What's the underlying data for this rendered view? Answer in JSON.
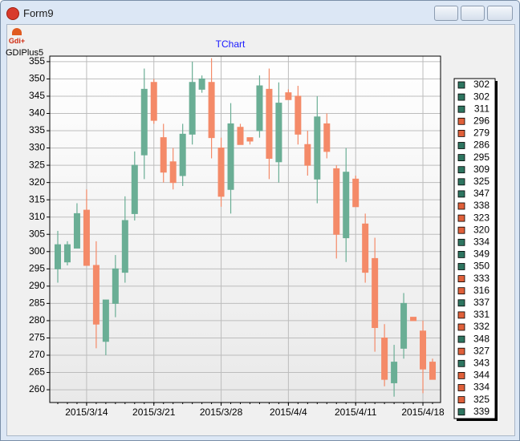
{
  "window": {
    "title": "Form9"
  },
  "toolbar": {
    "icon_label": "Gdi+"
  },
  "panel_label": "GDIPlus5",
  "chart_data": {
    "type": "candlestick",
    "title": "TChart",
    "x": [
      "2015/3/11",
      "2015/3/12",
      "2015/3/13",
      "2015/3/14",
      "2015/3/15",
      "2015/3/16",
      "2015/3/17",
      "2015/3/18",
      "2015/3/19",
      "2015/3/20",
      "2015/3/21",
      "2015/3/22",
      "2015/3/23",
      "2015/3/24",
      "2015/3/25",
      "2015/3/26",
      "2015/3/27",
      "2015/3/28",
      "2015/3/29",
      "2015/3/30",
      "2015/3/31",
      "2015/4/1",
      "2015/4/2",
      "2015/4/3",
      "2015/4/4",
      "2015/4/5",
      "2015/4/6",
      "2015/4/7",
      "2015/4/8",
      "2015/4/9",
      "2015/4/10",
      "2015/4/11",
      "2015/4/12",
      "2015/4/13",
      "2015/4/14",
      "2015/4/15",
      "2015/4/16",
      "2015/4/17",
      "2015/4/18",
      "2015/4/19"
    ],
    "open": [
      295,
      297,
      301,
      312,
      296,
      274,
      285,
      294,
      311,
      328,
      349,
      333,
      326,
      322,
      334,
      347,
      349,
      330,
      318,
      336,
      333,
      335,
      347,
      326,
      346,
      345,
      331,
      321,
      337,
      324,
      304,
      321,
      308,
      298,
      275,
      262,
      272,
      281,
      277,
      268
    ],
    "high": [
      306,
      303,
      314,
      318,
      303,
      286,
      299,
      316,
      329,
      353,
      350,
      337,
      330,
      337,
      355,
      351,
      356,
      333,
      343,
      337,
      333,
      351,
      353,
      349,
      347,
      348,
      335,
      345,
      340,
      325,
      330,
      322,
      311,
      304,
      279,
      273,
      288,
      281,
      280,
      269
    ],
    "low": [
      291,
      296,
      301,
      296,
      272,
      270,
      281,
      291,
      309,
      321,
      337,
      320,
      318,
      319,
      331,
      346,
      327,
      313,
      311,
      331,
      331,
      333,
      321,
      320,
      344,
      331,
      322,
      314,
      327,
      298,
      297,
      313,
      291,
      271,
      261,
      258,
      269,
      280,
      259,
      263
    ],
    "close": [
      302,
      302,
      311,
      296,
      279,
      286,
      295,
      309,
      325,
      347,
      338,
      323,
      320,
      334,
      349,
      350,
      333,
      316,
      337,
      331,
      332,
      348,
      327,
      343,
      344,
      334,
      325,
      339,
      329,
      305,
      323,
      313,
      294,
      278,
      263,
      268,
      285,
      280,
      266,
      263
    ],
    "up_color": "#6aae95",
    "down_color": "#f48a68",
    "legend_up_color": "#2e7560",
    "legend_down_color": "#e0603a",
    "ylim": [
      256.3,
      356.6
    ],
    "yticks": [
      260,
      265,
      270,
      275,
      280,
      285,
      290,
      295,
      300,
      305,
      310,
      315,
      320,
      325,
      330,
      335,
      340,
      345,
      350,
      355
    ],
    "xticks": [
      "2015/3/14",
      "2015/3/21",
      "2015/3/28",
      "2015/4/4",
      "2015/4/11",
      "2015/4/18"
    ],
    "grid": true,
    "legend": "right"
  }
}
